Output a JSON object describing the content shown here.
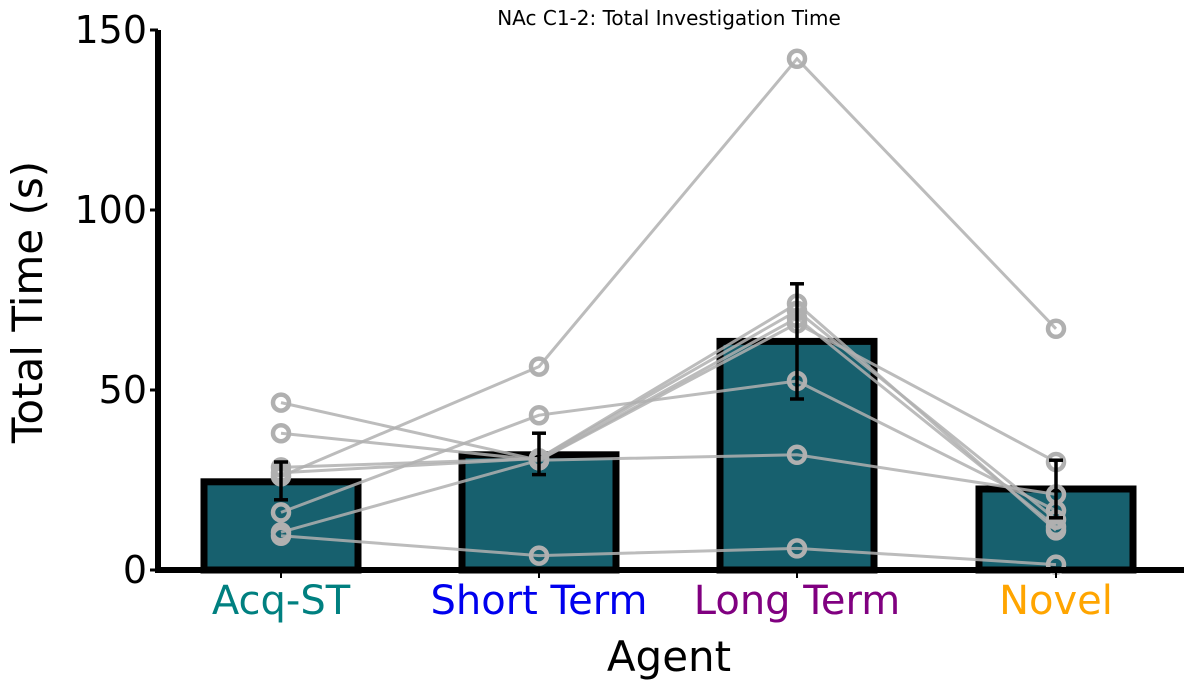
{
  "chart_data": {
    "type": "bar",
    "title": "NAc C1-2: Total Investigation Time",
    "xlabel": "Agent",
    "ylabel": "Total Time (s)",
    "ylim": [
      0,
      150
    ],
    "yticks": [
      0,
      50,
      100,
      150
    ],
    "grid": false,
    "categories": [
      "Acq-ST",
      "Short Term",
      "Long Term",
      "Novel"
    ],
    "category_colors": [
      "#008080",
      "#0000ee",
      "#800080",
      "#ffa500"
    ],
    "bar_color": "#17606e",
    "values": [
      24.5,
      32,
      63.5,
      22.5
    ],
    "error": [
      {
        "low": 19.5,
        "high": 30
      },
      {
        "low": 26.5,
        "high": 38
      },
      {
        "low": 47.5,
        "high": 79.5
      },
      {
        "low": 14.5,
        "high": 30.5
      }
    ],
    "subjects": [
      [
        46.5,
        30.5,
        32,
        21
      ],
      [
        38,
        30.5,
        70,
        12
      ],
      [
        28.5,
        31,
        72,
        14
      ],
      [
        26,
        56.5,
        142,
        67
      ],
      [
        16,
        43,
        52.5,
        16.5
      ],
      [
        10.5,
        30.5,
        68.5,
        30
      ],
      [
        9.5,
        4,
        6,
        1.5
      ],
      [
        27,
        31,
        74,
        11
      ]
    ],
    "subject_color": "#b0b0b0"
  }
}
